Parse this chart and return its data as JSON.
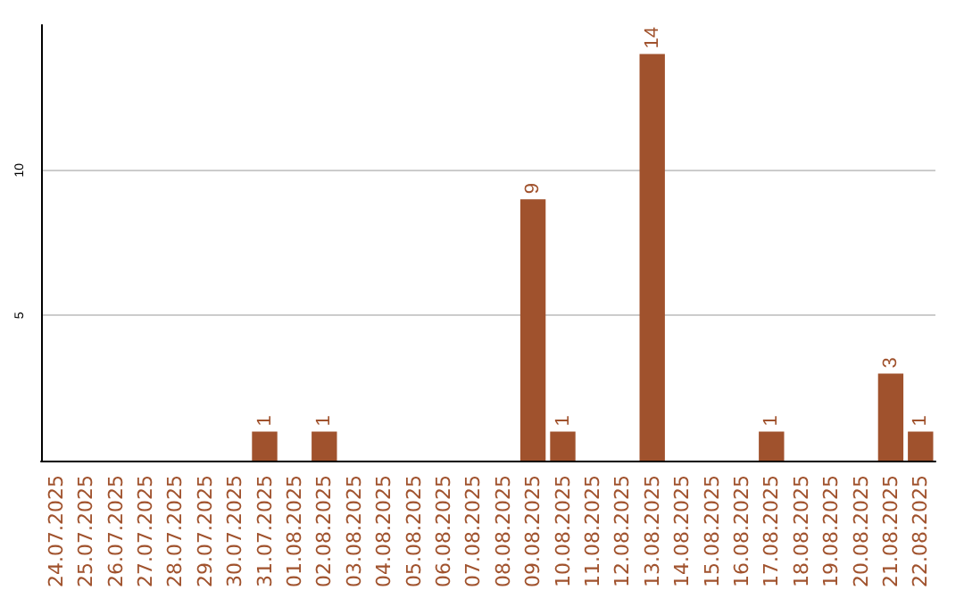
{
  "chart_data": {
    "type": "bar",
    "categories": [
      "24.07.2025",
      "25.07.2025",
      "26.07.2025",
      "27.07.2025",
      "28.07.2025",
      "29.07.2025",
      "30.07.2025",
      "31.07.2025",
      "01.08.2025",
      "02.08.2025",
      "03.08.2025",
      "04.08.2025",
      "05.08.2025",
      "06.08.2025",
      "07.08.2025",
      "08.08.2025",
      "09.08.2025",
      "10.08.2025",
      "11.08.2025",
      "12.08.2025",
      "13.08.2025",
      "14.08.2025",
      "15.08.2025",
      "16.08.2025",
      "17.08.2025",
      "18.08.2025",
      "19.08.2025",
      "20.08.2025",
      "21.08.2025",
      "22.08.2025"
    ],
    "values": [
      0,
      0,
      0,
      0,
      0,
      0,
      0,
      1,
      0,
      1,
      0,
      0,
      0,
      0,
      0,
      0,
      9,
      1,
      0,
      0,
      14,
      0,
      0,
      0,
      1,
      0,
      0,
      0,
      3,
      1
    ],
    "value_labels": [
      null,
      null,
      null,
      null,
      null,
      null,
      null,
      "1",
      null,
      "1",
      null,
      null,
      null,
      null,
      null,
      null,
      "9",
      "1",
      null,
      null,
      "14",
      null,
      null,
      null,
      "1",
      null,
      null,
      null,
      "3",
      "1"
    ],
    "color": "#a0522d",
    "ylim": [
      0,
      15
    ],
    "yticks": [
      5,
      10
    ],
    "grid": "y"
  }
}
